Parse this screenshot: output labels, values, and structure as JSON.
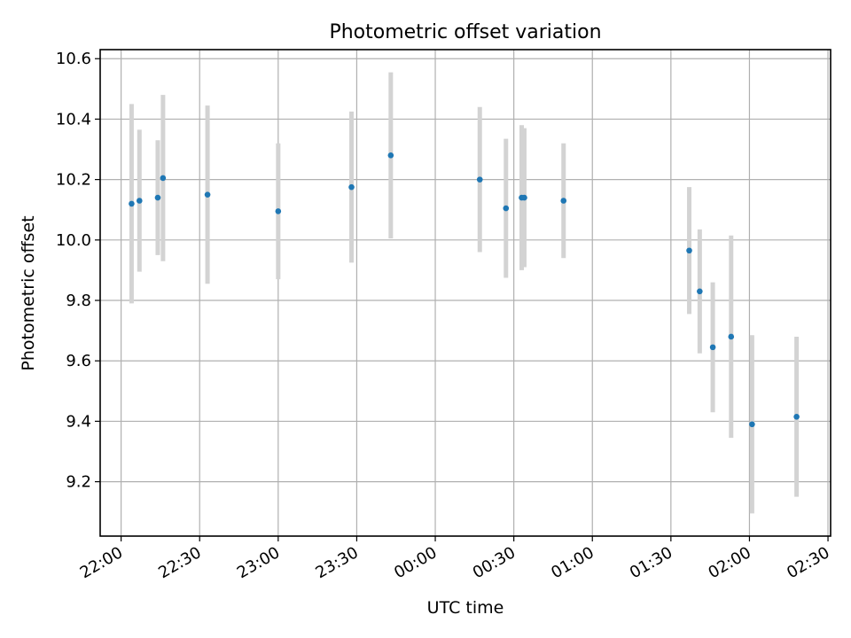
{
  "chart_data": {
    "type": "scatter",
    "title": "Photometric offset variation",
    "xlabel": "UTC time",
    "ylabel": "Photometric offset",
    "x_tick_labels": [
      "22:00",
      "22:30",
      "23:00",
      "23:30",
      "00:00",
      "00:30",
      "01:00",
      "01:30",
      "02:00",
      "02:30"
    ],
    "y_tick_labels": [
      "9.2",
      "9.4",
      "9.6",
      "9.8",
      "10.0",
      "10.2",
      "10.4",
      "10.6"
    ],
    "xlim": [
      "21:52",
      "02:31"
    ],
    "ylim": [
      9.02,
      10.63
    ],
    "grid": true,
    "point_color": "#1f77b4",
    "errorbar_color": "#d3d3d3",
    "points": [
      {
        "time": "22:04",
        "y": 10.12,
        "err": 0.33
      },
      {
        "time": "22:07",
        "y": 10.13,
        "err": 0.235
      },
      {
        "time": "22:14",
        "y": 10.14,
        "err": 0.19
      },
      {
        "time": "22:16",
        "y": 10.205,
        "err": 0.275
      },
      {
        "time": "22:33",
        "y": 10.15,
        "err": 0.295
      },
      {
        "time": "23:00",
        "y": 10.095,
        "err": 0.225
      },
      {
        "time": "23:28",
        "y": 10.175,
        "err": 0.25
      },
      {
        "time": "23:43",
        "y": 10.28,
        "err": 0.275
      },
      {
        "time": "00:17",
        "y": 10.2,
        "err": 0.24
      },
      {
        "time": "00:27",
        "y": 10.105,
        "err": 0.23
      },
      {
        "time": "00:33",
        "y": 10.14,
        "err": 0.24
      },
      {
        "time": "00:34",
        "y": 10.14,
        "err": 0.23
      },
      {
        "time": "00:49",
        "y": 10.13,
        "err": 0.19
      },
      {
        "time": "01:37",
        "y": 9.965,
        "err": 0.21
      },
      {
        "time": "01:41",
        "y": 9.83,
        "err": 0.205
      },
      {
        "time": "01:46",
        "y": 9.645,
        "err": 0.215
      },
      {
        "time": "01:53",
        "y": 9.68,
        "err": 0.335
      },
      {
        "time": "02:01",
        "y": 9.39,
        "err": 0.295
      },
      {
        "time": "02:18",
        "y": 9.415,
        "err": 0.265
      }
    ]
  }
}
